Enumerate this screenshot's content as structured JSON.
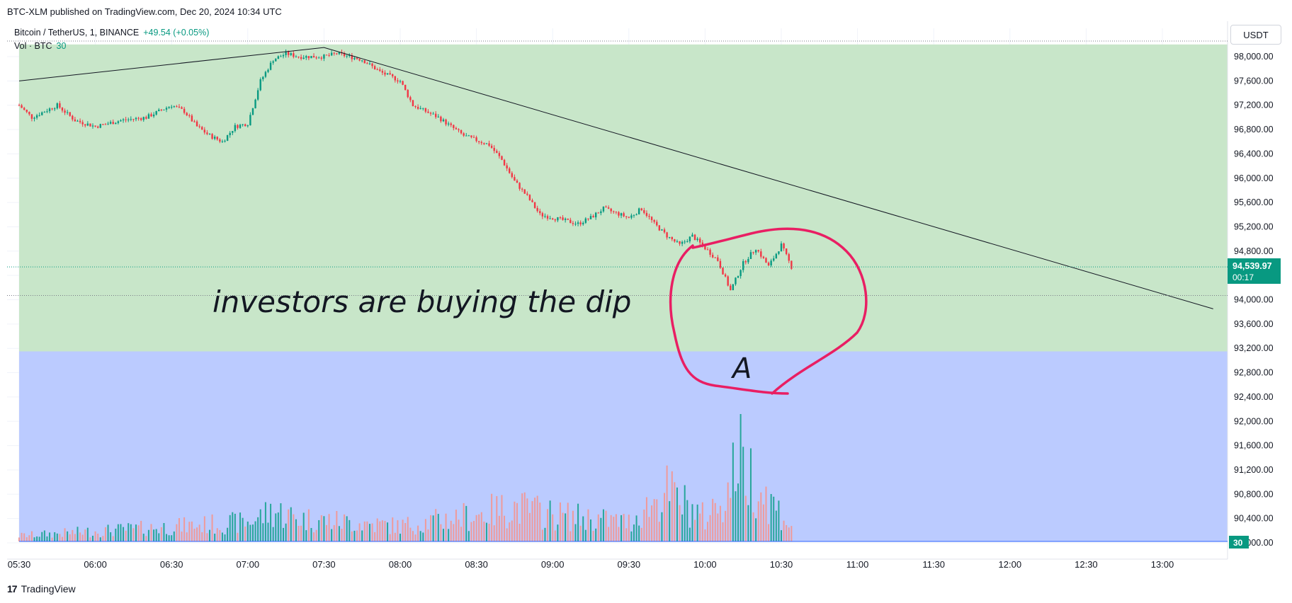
{
  "header": {
    "published": "BTC-XLM published on TradingView.com, Dec 20, 2024 10:34 UTC",
    "symbol": "Bitcoin / TetherUS, 1, BINANCE",
    "change": "+49.54 (+0.05%)",
    "volume_label": "Vol · BTC",
    "volume_value": "30"
  },
  "currency_button": "USDT",
  "footer": {
    "logo": "17",
    "brand": "TradingView"
  },
  "colors": {
    "up": "#089981",
    "down": "#f23645",
    "zone_green": "#c8e6c9",
    "zone_blue": "#bbcbff",
    "annotation": "#e91e63"
  },
  "annotations": {
    "text": "investors are buying the dip",
    "marker": "A"
  },
  "chart_data": {
    "type": "candlestick",
    "y_axis_ticks": [
      "98,000.00",
      "97,600.00",
      "97,200.00",
      "96,800.00",
      "96,400.00",
      "96,000.00",
      "95,600.00",
      "95,200.00",
      "94,800.00",
      "94,400.00",
      "94,000.00",
      "93,600.00",
      "93,200.00",
      "92,800.00",
      "92,400.00",
      "92,000.00",
      "91,600.00",
      "91,200.00",
      "90,800.00",
      "90,400.00",
      "90,000.00"
    ],
    "x_axis_ticks": [
      "05:30",
      "06:00",
      "06:30",
      "07:00",
      "07:30",
      "08:00",
      "08:30",
      "09:00",
      "09:30",
      "10:00",
      "10:30",
      "11:00",
      "11:30",
      "12:00",
      "12:30",
      "13:00"
    ],
    "ylim": [
      89800,
      98300
    ],
    "last_price": "94,539.97",
    "last_price_countdown": "00:17",
    "volume_label_value": "30",
    "price_path": [
      [
        "05:30",
        97200
      ],
      [
        "05:35",
        97000
      ],
      [
        "05:45",
        97200
      ],
      [
        "05:52",
        96950
      ],
      [
        "06:00",
        96850
      ],
      [
        "06:10",
        96950
      ],
      [
        "06:20",
        97000
      ],
      [
        "06:30",
        97200
      ],
      [
        "06:35",
        97100
      ],
      [
        "06:40",
        96850
      ],
      [
        "06:45",
        96700
      ],
      [
        "06:50",
        96600
      ],
      [
        "06:55",
        96850
      ],
      [
        "07:00",
        96900
      ],
      [
        "07:05",
        97600
      ],
      [
        "07:10",
        97950
      ],
      [
        "07:15",
        98050
      ],
      [
        "07:20",
        98000
      ],
      [
        "07:30",
        98000
      ],
      [
        "07:35",
        98050
      ],
      [
        "07:45",
        97950
      ],
      [
        "07:52",
        97750
      ],
      [
        "08:00",
        97600
      ],
      [
        "08:05",
        97200
      ],
      [
        "08:15",
        97000
      ],
      [
        "08:25",
        96700
      ],
      [
        "08:35",
        96550
      ],
      [
        "08:40",
        96300
      ],
      [
        "08:45",
        95950
      ],
      [
        "08:50",
        95700
      ],
      [
        "08:55",
        95400
      ],
      [
        "09:05",
        95300
      ],
      [
        "09:10",
        95250
      ],
      [
        "09:15",
        95350
      ],
      [
        "09:20",
        95500
      ],
      [
        "09:30",
        95350
      ],
      [
        "09:35",
        95500
      ],
      [
        "09:40",
        95250
      ],
      [
        "09:45",
        95050
      ],
      [
        "09:50",
        94900
      ],
      [
        "09:55",
        95050
      ],
      [
        "10:00",
        94850
      ],
      [
        "10:05",
        94650
      ],
      [
        "10:10",
        94150
      ],
      [
        "10:15",
        94600
      ],
      [
        "10:20",
        94850
      ],
      [
        "10:25",
        94550
      ],
      [
        "10:30",
        94900
      ],
      [
        "10:34",
        94540
      ]
    ],
    "volume_profile": [
      [
        "05:30",
        3
      ],
      [
        "07:00",
        10
      ],
      [
        "07:10",
        16
      ],
      [
        "07:20",
        12
      ],
      [
        "08:00",
        8
      ],
      [
        "08:30",
        14
      ],
      [
        "08:45",
        18
      ],
      [
        "09:00",
        14
      ],
      [
        "09:30",
        10
      ],
      [
        "09:45",
        26
      ],
      [
        "10:00",
        12
      ],
      [
        "10:10",
        28
      ],
      [
        "10:13",
        50
      ],
      [
        "10:15",
        40
      ],
      [
        "10:25",
        22
      ],
      [
        "10:34",
        8
      ]
    ],
    "trendline": [
      [
        "05:30",
        97600
      ],
      [
        "07:30",
        98150
      ],
      [
        "13:20",
        93850
      ]
    ],
    "zones": [
      {
        "color": "green",
        "from": 93150,
        "to": 98200
      },
      {
        "color": "blue",
        "from": 89950,
        "to": 93150
      }
    ]
  }
}
